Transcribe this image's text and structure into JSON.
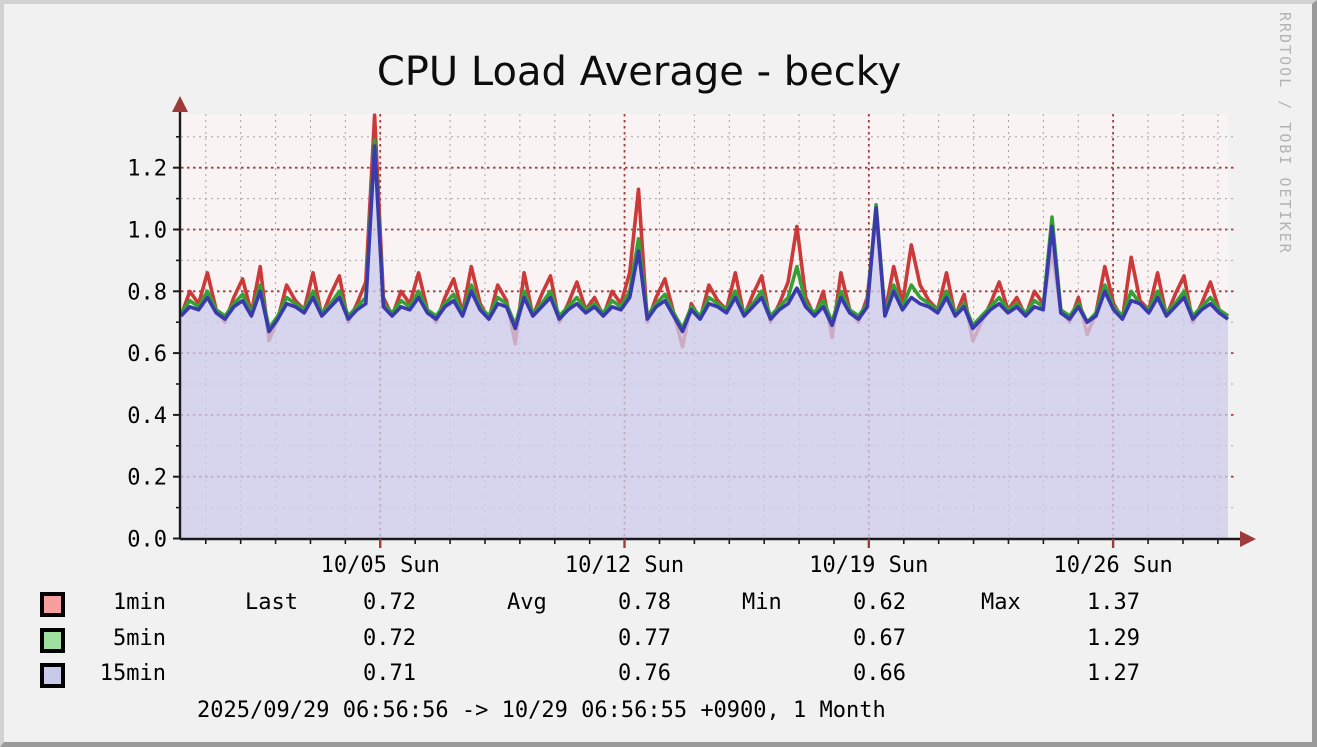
{
  "title": "CPU Load Average - becky",
  "watermark": "RRDTOOL / TOBI OETIKER",
  "footer": "2025/09/29 06:56:56 -> 10/29 06:56:55 +0900, 1 Month",
  "legend": {
    "columns": [
      "Last",
      "Avg",
      "Min",
      "Max"
    ],
    "rows": [
      {
        "label": "1min",
        "swatch": "#f79f9f",
        "last": "0.72",
        "avg": "0.78",
        "min": "0.62",
        "max": "1.37"
      },
      {
        "label": "5min",
        "swatch": "#9fdf9f",
        "last": "0.72",
        "avg": "0.77",
        "min": "0.67",
        "max": "1.29"
      },
      {
        "label": "15min",
        "swatch": "#c9c9ea",
        "last": "0.71",
        "avg": "0.76",
        "min": "0.66",
        "max": "1.27"
      }
    ]
  },
  "chart_data": {
    "type": "line",
    "title": "CPU Load Average - becky",
    "xlabel": "",
    "ylabel": "",
    "ylim": [
      0,
      1.374
    ],
    "x_range_days": 30,
    "grid": true,
    "legend_position": "bottom",
    "y_major": [
      0.2,
      0.4,
      0.6,
      0.8,
      1.0,
      1.2
    ],
    "y_minor": [
      0.1,
      0.3,
      0.5,
      0.7,
      0.9,
      1.1,
      1.3
    ],
    "y_tick_labels": [
      {
        "label": "0.0",
        "value": 0.0
      },
      {
        "label": "0.2",
        "value": 0.2
      },
      {
        "label": "0.4",
        "value": 0.4
      },
      {
        "label": "0.6",
        "value": 0.6
      },
      {
        "label": "0.8",
        "value": 0.8
      },
      {
        "label": "1.0",
        "value": 1.0
      },
      {
        "label": "1.2",
        "value": 1.2
      }
    ],
    "x_major": [
      {
        "label": "10/05 Sun",
        "day": 5.7083
      },
      {
        "label": "10/12 Sun",
        "day": 12.7083
      },
      {
        "label": "10/19 Sun",
        "day": 19.7083
      },
      {
        "label": "10/26 Sun",
        "day": 26.7083
      }
    ],
    "x_minor_days": [
      0.71,
      1.71,
      2.71,
      3.71,
      4.71,
      6.71,
      7.71,
      8.71,
      9.71,
      10.71,
      11.71,
      13.71,
      14.71,
      15.71,
      16.71,
      17.71,
      18.71,
      20.71,
      21.71,
      22.71,
      23.71,
      24.71,
      25.71,
      27.71,
      28.71,
      29.71
    ],
    "colors": {
      "canvas": "#f9f3f3",
      "fill": "#ccccea",
      "grid_minor": "#a5a5a5",
      "grid_major": "#a03c3c",
      "axis": "#1a1a1a",
      "arrow": "#9e3a3a",
      "series_1min": "#cc3939",
      "series_5min": "#35a135",
      "series_15min": "#3a3aad"
    },
    "series": [
      {
        "name": "1min",
        "color": "#cc3939",
        "style": "line",
        "values": [
          0.72,
          0.8,
          0.76,
          0.86,
          0.74,
          0.7,
          0.78,
          0.84,
          0.73,
          0.88,
          0.64,
          0.71,
          0.82,
          0.77,
          0.74,
          0.86,
          0.72,
          0.79,
          0.85,
          0.7,
          0.76,
          0.83,
          1.37,
          0.78,
          0.72,
          0.8,
          0.76,
          0.86,
          0.74,
          0.7,
          0.78,
          0.84,
          0.73,
          0.88,
          0.76,
          0.71,
          0.82,
          0.77,
          0.63,
          0.86,
          0.72,
          0.79,
          0.85,
          0.7,
          0.76,
          0.83,
          0.74,
          0.78,
          0.72,
          0.8,
          0.76,
          0.86,
          1.13,
          0.7,
          0.78,
          0.84,
          0.73,
          0.62,
          0.76,
          0.71,
          0.82,
          0.77,
          0.74,
          0.86,
          0.72,
          0.79,
          0.85,
          0.7,
          0.76,
          0.83,
          1.01,
          0.78,
          0.72,
          0.8,
          0.65,
          0.86,
          0.74,
          0.7,
          0.78,
          1.05,
          0.73,
          0.88,
          0.76,
          0.95,
          0.82,
          0.77,
          0.74,
          0.86,
          0.72,
          0.79,
          0.64,
          0.7,
          0.76,
          0.83,
          0.74,
          0.78,
          0.72,
          0.8,
          0.76,
          0.93,
          0.74,
          0.7,
          0.78,
          0.66,
          0.73,
          0.88,
          0.76,
          0.71,
          0.91,
          0.77,
          0.74,
          0.86,
          0.72,
          0.79,
          0.85,
          0.7,
          0.76,
          0.83,
          0.74,
          0.72
        ]
      },
      {
        "name": "5min",
        "color": "#35a135",
        "style": "line",
        "values": [
          0.73,
          0.77,
          0.75,
          0.8,
          0.74,
          0.72,
          0.76,
          0.79,
          0.73,
          0.82,
          0.68,
          0.72,
          0.78,
          0.76,
          0.74,
          0.8,
          0.73,
          0.76,
          0.8,
          0.72,
          0.75,
          0.78,
          1.29,
          0.76,
          0.73,
          0.77,
          0.75,
          0.8,
          0.74,
          0.72,
          0.76,
          0.79,
          0.73,
          0.82,
          0.75,
          0.72,
          0.78,
          0.76,
          0.69,
          0.8,
          0.73,
          0.76,
          0.8,
          0.72,
          0.75,
          0.78,
          0.74,
          0.76,
          0.73,
          0.77,
          0.75,
          0.8,
          0.97,
          0.72,
          0.76,
          0.79,
          0.73,
          0.68,
          0.75,
          0.72,
          0.78,
          0.76,
          0.74,
          0.8,
          0.73,
          0.76,
          0.8,
          0.72,
          0.75,
          0.78,
          0.88,
          0.76,
          0.73,
          0.77,
          0.7,
          0.8,
          0.74,
          0.72,
          0.76,
          1.08,
          0.73,
          0.82,
          0.75,
          0.82,
          0.78,
          0.76,
          0.74,
          0.8,
          0.73,
          0.76,
          0.69,
          0.72,
          0.75,
          0.78,
          0.74,
          0.76,
          0.73,
          0.77,
          0.75,
          1.04,
          0.74,
          0.72,
          0.76,
          0.7,
          0.73,
          0.82,
          0.75,
          0.72,
          0.8,
          0.76,
          0.74,
          0.8,
          0.73,
          0.76,
          0.8,
          0.72,
          0.75,
          0.78,
          0.74,
          0.72
        ]
      },
      {
        "name": "15min",
        "color": "#3a3aad",
        "style": "area+line",
        "fill": "#ccccea",
        "values": [
          0.72,
          0.75,
          0.74,
          0.78,
          0.73,
          0.71,
          0.75,
          0.77,
          0.72,
          0.8,
          0.67,
          0.71,
          0.76,
          0.75,
          0.73,
          0.78,
          0.72,
          0.75,
          0.78,
          0.71,
          0.74,
          0.76,
          1.27,
          0.75,
          0.72,
          0.75,
          0.74,
          0.78,
          0.73,
          0.71,
          0.75,
          0.77,
          0.72,
          0.8,
          0.74,
          0.71,
          0.76,
          0.75,
          0.68,
          0.78,
          0.72,
          0.75,
          0.78,
          0.71,
          0.74,
          0.76,
          0.73,
          0.75,
          0.72,
          0.75,
          0.74,
          0.78,
          0.93,
          0.71,
          0.75,
          0.77,
          0.72,
          0.67,
          0.74,
          0.71,
          0.76,
          0.75,
          0.73,
          0.78,
          0.72,
          0.75,
          0.78,
          0.71,
          0.74,
          0.76,
          0.81,
          0.75,
          0.72,
          0.75,
          0.69,
          0.78,
          0.73,
          0.71,
          0.75,
          1.07,
          0.72,
          0.8,
          0.74,
          0.78,
          0.76,
          0.75,
          0.73,
          0.78,
          0.72,
          0.75,
          0.68,
          0.71,
          0.74,
          0.76,
          0.73,
          0.75,
          0.72,
          0.75,
          0.74,
          1.01,
          0.73,
          0.71,
          0.75,
          0.7,
          0.72,
          0.8,
          0.74,
          0.71,
          0.77,
          0.76,
          0.73,
          0.78,
          0.72,
          0.75,
          0.78,
          0.71,
          0.74,
          0.76,
          0.73,
          0.71
        ]
      }
    ]
  }
}
